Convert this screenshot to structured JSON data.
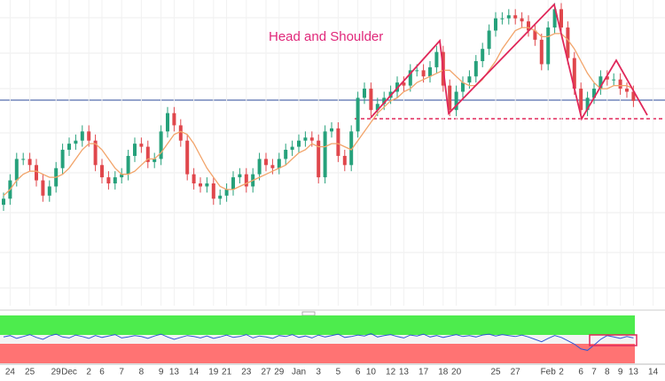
{
  "annotation": "Head and Shoulder",
  "chart_data": {
    "type": "candlestick",
    "categories": [
      null,
      "24",
      null,
      null,
      "25",
      null,
      null,
      null,
      "29",
      null,
      "Dec",
      null,
      null,
      "2",
      null,
      "6",
      null,
      null,
      "7",
      null,
      null,
      "8",
      null,
      null,
      "9",
      null,
      "13",
      null,
      null,
      "14",
      null,
      null,
      "19",
      null,
      "21",
      null,
      null,
      "23",
      null,
      null,
      "27",
      null,
      "29",
      null,
      null,
      "Jan",
      null,
      null,
      "3",
      null,
      null,
      "5",
      null,
      null,
      "6",
      null,
      "10",
      null,
      null,
      "12",
      null,
      "13",
      null,
      null,
      "17",
      null,
      null,
      "18",
      null,
      "20",
      null,
      null,
      null,
      null,
      null,
      "25",
      null,
      null,
      "27",
      null,
      null,
      null,
      null,
      "Feb",
      null,
      "2",
      null,
      null,
      "6",
      null,
      "7",
      null,
      "8",
      null,
      "9",
      null,
      "13",
      null,
      null,
      "14"
    ],
    "open": [
      33,
      35,
      41,
      48,
      48,
      46,
      41,
      36,
      39,
      45,
      51,
      53,
      54,
      57,
      54,
      46,
      42,
      40,
      42,
      43,
      49,
      53,
      52,
      47,
      48,
      57,
      63,
      59,
      54,
      43,
      40,
      39,
      40,
      35,
      36,
      38,
      42,
      43,
      39,
      43,
      48,
      46,
      45,
      48,
      51,
      52,
      54,
      55,
      54,
      42,
      57,
      58,
      49,
      46,
      57,
      68,
      71,
      64,
      66,
      68,
      70,
      73,
      72,
      77,
      77,
      75,
      78,
      83,
      72,
      64,
      70,
      73,
      75,
      80,
      84,
      90,
      94,
      94,
      95,
      94,
      93,
      90,
      87,
      79,
      91,
      97,
      91,
      81,
      71,
      64,
      68,
      71,
      75,
      74,
      74,
      71,
      70,
      null,
      null,
      null
    ],
    "high": [
      37,
      43,
      50,
      50,
      50,
      48,
      43,
      41,
      47,
      53,
      55,
      56,
      59,
      59,
      56,
      48,
      44,
      44,
      45,
      51,
      55,
      55,
      54,
      50,
      59,
      65,
      65,
      61,
      56,
      45,
      42,
      42,
      42,
      38,
      40,
      44,
      45,
      45,
      45,
      50,
      50,
      48,
      50,
      53,
      54,
      56,
      57,
      57,
      56,
      59,
      60,
      60,
      51,
      59,
      70,
      73,
      73,
      68,
      70,
      72,
      75,
      75,
      79,
      79,
      79,
      80,
      85,
      85,
      74,
      72,
      75,
      77,
      82,
      86,
      92,
      96,
      96,
      97,
      97,
      96,
      95,
      92,
      89,
      93,
      99,
      99,
      93,
      83,
      73,
      70,
      73,
      77,
      77,
      76,
      76,
      73,
      72,
      null,
      null,
      null
    ],
    "low": [
      31,
      33,
      39,
      46,
      44,
      39,
      34,
      34,
      37,
      43,
      49,
      51,
      52,
      52,
      44,
      40,
      38,
      38,
      40,
      41,
      47,
      50,
      45,
      45,
      46,
      55,
      57,
      52,
      41,
      38,
      37,
      37,
      33,
      33,
      34,
      36,
      40,
      37,
      37,
      41,
      44,
      43,
      43,
      46,
      49,
      50,
      52,
      52,
      40,
      40,
      55,
      47,
      44,
      44,
      55,
      66,
      62,
      62,
      64,
      66,
      68,
      70,
      70,
      75,
      73,
      73,
      76,
      70,
      62,
      62,
      68,
      71,
      73,
      78,
      82,
      88,
      92,
      92,
      92,
      91,
      88,
      85,
      77,
      77,
      89,
      89,
      79,
      69,
      62,
      62,
      66,
      69,
      72,
      72,
      69,
      68,
      65,
      null,
      null,
      null
    ],
    "close": [
      35,
      41,
      48,
      48,
      46,
      41,
      36,
      39,
      45,
      51,
      53,
      54,
      57,
      54,
      46,
      42,
      40,
      42,
      43,
      49,
      53,
      52,
      47,
      48,
      57,
      63,
      59,
      54,
      43,
      40,
      39,
      40,
      35,
      36,
      38,
      42,
      43,
      39,
      43,
      48,
      46,
      45,
      48,
      51,
      52,
      54,
      55,
      54,
      42,
      57,
      58,
      49,
      46,
      57,
      68,
      71,
      64,
      66,
      68,
      70,
      73,
      72,
      77,
      77,
      75,
      78,
      83,
      72,
      64,
      70,
      73,
      75,
      80,
      84,
      90,
      94,
      94,
      95,
      94,
      93,
      90,
      87,
      79,
      91,
      97,
      91,
      81,
      71,
      64,
      68,
      71,
      75,
      74,
      74,
      71,
      70,
      67,
      null,
      null,
      null
    ],
    "ylim": [
      0,
      100
    ],
    "up_color": "#26a17b",
    "down_color": "#e0474c",
    "ma": {
      "color": "#f2a46a",
      "values": [
        36,
        38,
        41,
        43,
        44,
        44,
        43,
        42,
        42,
        43,
        45,
        48,
        51,
        53,
        53,
        51,
        48,
        45,
        43,
        43,
        44,
        46,
        48,
        48,
        50,
        53,
        56,
        57,
        56,
        53,
        49,
        45,
        42,
        39,
        38,
        38,
        39,
        40,
        41,
        42,
        43,
        44,
        45,
        46,
        48,
        50,
        51,
        53,
        52,
        52,
        53,
        53,
        52,
        51,
        54,
        57,
        60,
        63,
        65,
        67,
        68,
        70,
        71,
        73,
        74,
        75,
        76,
        77,
        77,
        75,
        73,
        72,
        72,
        74,
        77,
        80,
        84,
        87,
        90,
        91,
        91,
        90,
        88,
        88,
        89,
        89,
        87,
        84,
        80,
        76,
        73,
        71,
        71,
        72,
        72,
        72,
        71,
        null,
        null,
        null
      ]
    },
    "oscillator": {
      "color": "#2f55d4",
      "ylim": [
        0,
        100
      ],
      "values": [
        55,
        58,
        52,
        56,
        60,
        54,
        50,
        57,
        61,
        55,
        53,
        59,
        56,
        52,
        58,
        54,
        57,
        60,
        53,
        55,
        58,
        56,
        52,
        57,
        61,
        55,
        50,
        54,
        58,
        56,
        53,
        57,
        52,
        55,
        59,
        54,
        56,
        60,
        53,
        57,
        55,
        52,
        58,
        56,
        60,
        54,
        57,
        53,
        59,
        55,
        58,
        61,
        54,
        56,
        59,
        57,
        62,
        55,
        58,
        60,
        56,
        53,
        59,
        57,
        61,
        55,
        58,
        54,
        57,
        60,
        56,
        58,
        55,
        59,
        61,
        57,
        60,
        58,
        56,
        59,
        55,
        50,
        45,
        52,
        58,
        54,
        47,
        40,
        30,
        27,
        38,
        50,
        58,
        55,
        52,
        56,
        53,
        null,
        null,
        null
      ]
    }
  }
}
